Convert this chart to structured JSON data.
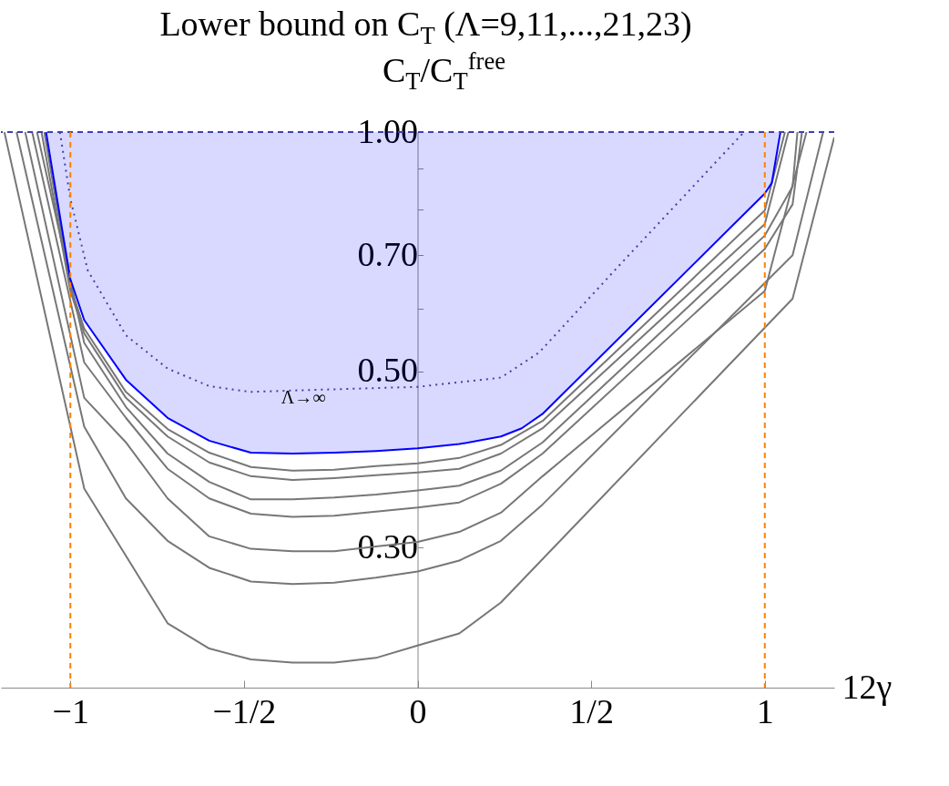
{
  "chart_data": {
    "type": "line",
    "title": "Lower bound on C$_{T}$  (Λ=9,11,...,21,23)",
    "ylabel": "C$_{T}$/C$_{T}$$^{free}$",
    "xlabel": "12γ",
    "xlim": [
      -1.2,
      1.2
    ],
    "ylim": [
      0.2,
      1.0
    ],
    "log": true,
    "xticks": [
      {
        "value": -1,
        "label": "−1"
      },
      {
        "value": -0.5,
        "label": "−1/2"
      },
      0,
      {
        "value": 0.5,
        "label": "1/2"
      },
      1
    ],
    "yticks": [
      {
        "value": 1,
        "label": "1.00"
      },
      {
        "value": 0.9,
        "label": null
      },
      {
        "value": 0.8,
        "label": null
      },
      {
        "value": 0.7,
        "label": "0.70"
      },
      {
        "value": 0.6,
        "label": null
      },
      {
        "value": 0.5,
        "label": "0.50"
      },
      {
        "value": 0.3,
        "label": "0.30"
      }
    ],
    "series": [
      {
        "color": "#777777",
        "x": [
          -1.19,
          -0.96,
          -0.84,
          -0.72,
          -0.6,
          -0.48,
          -0.36,
          -0.24,
          -0.12,
          0,
          0.12,
          0.24,
          1.08,
          1.2
        ],
        "values": [
          1.0,
          0.356,
          0.293,
          0.241,
          0.224,
          0.217,
          0.215,
          0.215,
          0.218,
          0.226,
          0.234,
          0.256,
          0.617,
          0.985
        ]
      },
      {
        "color": "#777777",
        "x": [
          -1.155,
          -0.96,
          -0.84,
          -0.72,
          -0.6,
          -0.48,
          -0.36,
          -0.24,
          -0.12,
          0,
          0.12,
          0.24,
          0.36,
          1.08,
          1.168
        ],
        "values": [
          1.0,
          0.426,
          0.346,
          0.306,
          0.283,
          0.272,
          0.27,
          0.271,
          0.275,
          0.28,
          0.289,
          0.306,
          0.34,
          0.7,
          1.0
        ]
      },
      {
        "color": "#777777",
        "x": [
          -1.13,
          -0.96,
          -0.84,
          -0.72,
          -0.6,
          -0.48,
          -0.36,
          -0.24,
          -0.12,
          0,
          0.12,
          0.24,
          0.36,
          1.0,
          1.12
        ],
        "values": [
          1.0,
          0.463,
          0.407,
          0.346,
          0.31,
          0.299,
          0.297,
          0.297,
          0.301,
          0.305,
          0.314,
          0.332,
          0.369,
          0.631,
          1.0
        ]
      },
      {
        "color": "#777777",
        "x": [
          -1.11,
          -0.96,
          -0.84,
          -0.72,
          -0.6,
          -0.48,
          -0.36,
          -0.24,
          -0.12,
          0,
          0.12,
          0.24,
          0.36,
          1.0,
          1.08,
          1.107
        ],
        "values": [
          1.0,
          0.513,
          0.437,
          0.377,
          0.346,
          0.331,
          0.328,
          0.329,
          0.333,
          0.337,
          0.342,
          0.361,
          0.394,
          0.713,
          0.811,
          1.0
        ]
      },
      {
        "color": "#777777",
        "x": [
          -1.096,
          -0.96,
          -0.84,
          -0.72,
          -0.6,
          -0.48,
          -0.36,
          -0.24,
          -0.12,
          0,
          0.12,
          0.24,
          0.36,
          1.0,
          1.08,
          1.094
        ],
        "values": [
          1.0,
          0.543,
          0.451,
          0.394,
          0.363,
          0.345,
          0.345,
          0.347,
          0.35,
          0.354,
          0.359,
          0.375,
          0.407,
          0.741,
          0.854,
          1.0
        ]
      },
      {
        "color": "#777777",
        "x": [
          -1.083,
          -1.0,
          -0.96,
          -0.84,
          -0.72,
          -0.6,
          -0.48,
          -0.36,
          -0.24,
          -0.12,
          0,
          0.12,
          0.24,
          0.36,
          1.0,
          1.068
        ],
        "values": [
          1.0,
          0.631,
          0.558,
          0.463,
          0.414,
          0.384,
          0.369,
          0.365,
          0.367,
          0.37,
          0.373,
          0.377,
          0.394,
          0.424,
          0.766,
          1.0
        ]
      },
      {
        "color": "#777777",
        "x": [
          -1.075,
          -1.0,
          -0.96,
          -0.84,
          -0.72,
          -0.6,
          -0.48,
          -0.36,
          -0.24,
          -0.12,
          0,
          0.12,
          0.24,
          0.36,
          1.0,
          1.058
        ],
        "values": [
          1.0,
          0.64,
          0.566,
          0.471,
          0.423,
          0.395,
          0.379,
          0.375,
          0.376,
          0.38,
          0.383,
          0.389,
          0.404,
          0.433,
          0.797,
          1.0
        ]
      },
      {
        "color": "#0000ff",
        "x": [
          -1.07,
          -1.0,
          -0.96,
          -0.84,
          -0.72,
          -0.6,
          -0.48,
          -0.36,
          -0.24,
          -0.12,
          0,
          0.12,
          0.24,
          0.3,
          0.36,
          1.0,
          1.02,
          1.045
        ],
        "values": [
          1.0,
          0.653,
          0.58,
          0.488,
          0.437,
          0.409,
          0.395,
          0.394,
          0.395,
          0.397,
          0.4,
          0.405,
          0.414,
          0.424,
          0.442,
          0.837,
          0.863,
          1.0
        ],
        "lower": [
          1.0,
          0.653,
          0.58,
          0.488,
          0.437,
          0.409,
          0.395,
          0.394,
          0.395,
          0.397,
          0.4,
          0.405,
          0.414,
          0.424,
          0.442,
          0.837,
          0.863,
          1.0
        ],
        "upper": [
          1,
          1,
          1,
          1,
          1,
          1,
          1,
          1,
          1,
          1,
          1,
          1,
          1,
          1,
          1,
          1,
          1,
          1
        ]
      },
      {
        "color": "#4040a8",
        "line_style": "dotted",
        "x": [
          -1.03,
          -1.0,
          -0.95,
          -0.84,
          -0.72,
          -0.6,
          -0.48,
          -0.36,
          0,
          0.24,
          0.35,
          0.58,
          0.94
        ],
        "values": [
          1.0,
          0.824,
          0.67,
          0.555,
          0.504,
          0.479,
          0.471,
          0.473,
          0.478,
          0.491,
          0.528,
          0.679,
          1.0
        ]
      }
    ],
    "ref_lines": [
      {
        "axis": "y",
        "value": 1,
        "color": "#4040b0",
        "line_style": "dashed"
      },
      {
        "axis": "x",
        "value": -1,
        "color": "#ff8000",
        "line_style": "dashed"
      },
      {
        "axis": "x",
        "value": 1,
        "color": "#ff8000",
        "line_style": "dashed"
      }
    ],
    "annotations": [
      "Λ→∞"
    ]
  }
}
